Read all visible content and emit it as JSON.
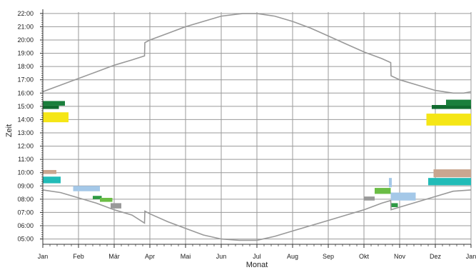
{
  "chart_data": {
    "type": "area",
    "xlabel": "Monat",
    "ylabel": "Zeit",
    "x_ticks": [
      "Jan",
      "Feb",
      "Mär",
      "Apr",
      "Mai",
      "Jun",
      "Jul",
      "Aug",
      "Sep",
      "Okt",
      "Nov",
      "Dez",
      "Jan"
    ],
    "y_ticks": [
      "05:00",
      "06:00",
      "07:00",
      "08:00",
      "09:00",
      "10:00",
      "11:00",
      "12:00",
      "13:00",
      "14:00",
      "15:00",
      "16:00",
      "17:00",
      "18:00",
      "19:00",
      "20:00",
      "21:00",
      "22:00"
    ],
    "xlim_months": [
      0,
      12
    ],
    "ylim_hours": [
      4.6,
      22.1
    ],
    "grid": true,
    "sunset_curve": [
      [
        0.0,
        16.1
      ],
      [
        0.5,
        16.6
      ],
      [
        1.0,
        17.1
      ],
      [
        1.5,
        17.6
      ],
      [
        2.0,
        18.1
      ],
      [
        2.5,
        18.5
      ],
      [
        2.85,
        18.8
      ],
      [
        2.86,
        19.8
      ],
      [
        3.0,
        20.0
      ],
      [
        3.5,
        20.5
      ],
      [
        4.0,
        21.0
      ],
      [
        4.5,
        21.4
      ],
      [
        5.0,
        21.8
      ],
      [
        5.6,
        22.0
      ],
      [
        6.0,
        22.0
      ],
      [
        6.5,
        21.8
      ],
      [
        7.0,
        21.4
      ],
      [
        7.5,
        20.9
      ],
      [
        8.0,
        20.3
      ],
      [
        8.5,
        19.7
      ],
      [
        9.0,
        19.1
      ],
      [
        9.5,
        18.6
      ],
      [
        9.75,
        18.3
      ],
      [
        9.76,
        17.3
      ],
      [
        10.0,
        17.0
      ],
      [
        10.5,
        16.6
      ],
      [
        11.0,
        16.2
      ],
      [
        11.5,
        16.0
      ],
      [
        11.8,
        16.0
      ],
      [
        12.0,
        16.1
      ]
    ],
    "sunrise_curve": [
      [
        0.0,
        8.7
      ],
      [
        0.5,
        8.5
      ],
      [
        1.0,
        8.1
      ],
      [
        1.5,
        7.7
      ],
      [
        2.0,
        7.2
      ],
      [
        2.5,
        6.8
      ],
      [
        2.85,
        6.2
      ],
      [
        2.86,
        7.1
      ],
      [
        3.0,
        6.9
      ],
      [
        3.5,
        6.3
      ],
      [
        4.0,
        5.8
      ],
      [
        4.5,
        5.3
      ],
      [
        5.0,
        5.0
      ],
      [
        5.5,
        4.9
      ],
      [
        6.0,
        4.9
      ],
      [
        6.5,
        5.2
      ],
      [
        7.0,
        5.6
      ],
      [
        7.5,
        6.0
      ],
      [
        8.0,
        6.4
      ],
      [
        8.5,
        6.8
      ],
      [
        9.0,
        7.2
      ],
      [
        9.5,
        7.7
      ],
      [
        9.75,
        7.9
      ],
      [
        9.76,
        7.2
      ],
      [
        10.0,
        7.4
      ],
      [
        10.5,
        7.8
      ],
      [
        11.0,
        8.2
      ],
      [
        11.5,
        8.6
      ],
      [
        12.0,
        8.7
      ]
    ],
    "observations": [
      {
        "color": "#1a7f3c",
        "x0": 0.0,
        "x1": 0.62,
        "y0": 15.05,
        "y1": 15.4
      },
      {
        "color": "#116b2f",
        "x0": 0.0,
        "x1": 0.45,
        "y0": 14.8,
        "y1": 15.05
      },
      {
        "color": "#f5e616",
        "x0": 0.0,
        "x1": 0.72,
        "y0": 13.8,
        "y1": 14.55
      },
      {
        "color": "#c9a690",
        "x0": 0.0,
        "x1": 0.38,
        "y0": 9.9,
        "y1": 10.2
      },
      {
        "color": "#22bcb8",
        "x0": 0.0,
        "x1": 0.5,
        "y0": 9.2,
        "y1": 9.7
      },
      {
        "color": "#a4c8e8",
        "x0": 0.85,
        "x1": 1.6,
        "y0": 8.6,
        "y1": 9.0
      },
      {
        "color": "#2e9a44",
        "x0": 1.4,
        "x1": 1.65,
        "y0": 8.0,
        "y1": 8.25
      },
      {
        "color": "#6bbd45",
        "x0": 1.6,
        "x1": 1.95,
        "y0": 7.8,
        "y1": 8.1
      },
      {
        "color": "#999999",
        "x0": 1.9,
        "x1": 2.2,
        "y0": 7.3,
        "y1": 7.7
      },
      {
        "color": "#999999",
        "x0": 9.0,
        "x1": 9.3,
        "y0": 7.9,
        "y1": 8.2
      },
      {
        "color": "#6bbd45",
        "x0": 9.3,
        "x1": 9.75,
        "y0": 8.4,
        "y1": 8.85
      },
      {
        "color": "#a4c8e8",
        "x0": 9.7,
        "x1": 9.78,
        "y0": 8.9,
        "y1": 9.6
      },
      {
        "color": "#a4c8e8",
        "x0": 9.75,
        "x1": 10.45,
        "y0": 7.9,
        "y1": 8.5
      },
      {
        "color": "#2e9a44",
        "x0": 9.75,
        "x1": 9.95,
        "y0": 7.4,
        "y1": 7.7
      },
      {
        "color": "#116b2f",
        "x0": 10.9,
        "x1": 12.0,
        "y0": 14.8,
        "y1": 15.1
      },
      {
        "color": "#1a7f3c",
        "x0": 11.3,
        "x1": 12.0,
        "y0": 15.05,
        "y1": 15.5
      },
      {
        "color": "#f5e616",
        "x0": 10.75,
        "x1": 12.0,
        "y0": 13.55,
        "y1": 14.45
      },
      {
        "color": "#c9a690",
        "x0": 10.95,
        "x1": 12.0,
        "y0": 9.65,
        "y1": 10.25
      },
      {
        "color": "#22bcb8",
        "x0": 10.8,
        "x1": 12.0,
        "y0": 9.05,
        "y1": 9.6
      }
    ],
    "colors": {
      "curve": "#999999",
      "grid": "#9a9a9a",
      "axis": "#333333"
    }
  }
}
